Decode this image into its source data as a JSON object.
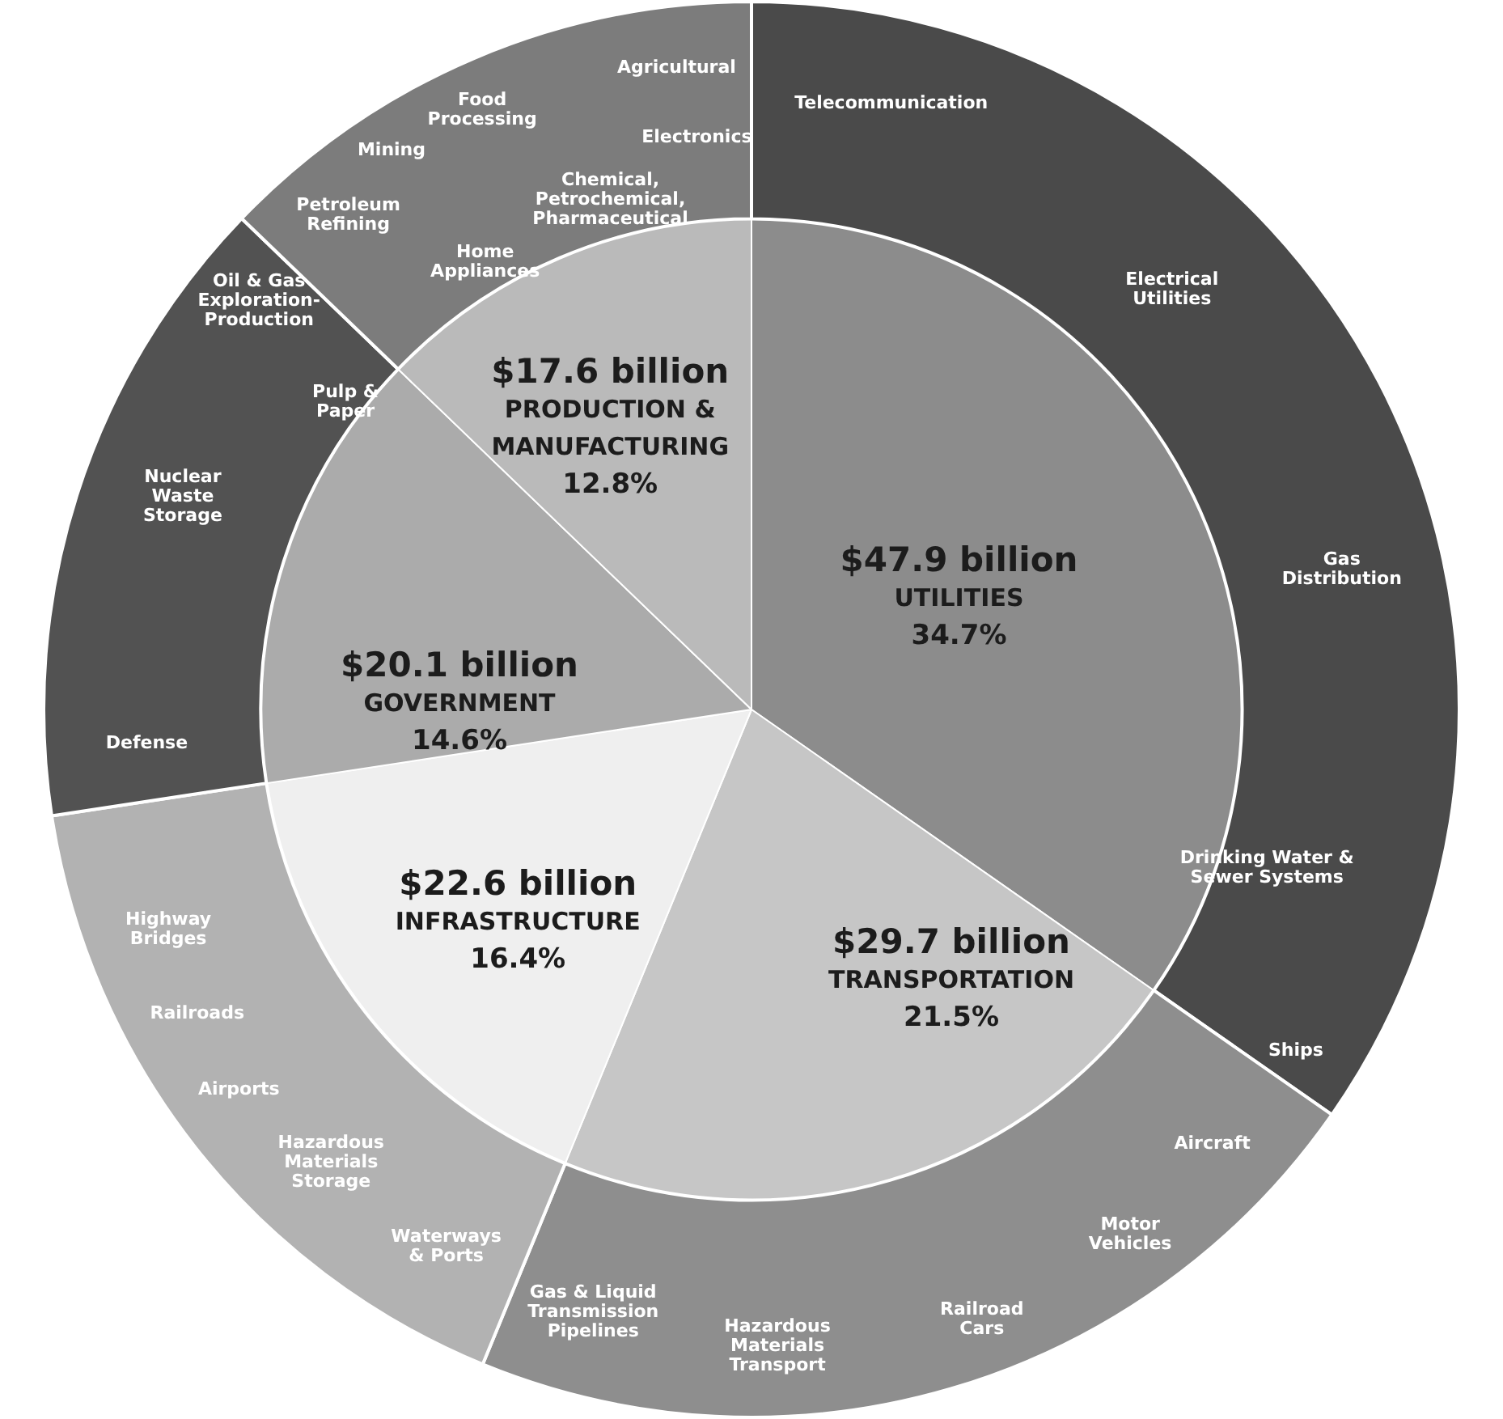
{
  "chart_data": {
    "type": "pie",
    "categories": [
      "UTILITIES",
      "TRANSPORTATION",
      "INFRASTRUCTURE",
      "GOVERNMENT",
      "PRODUCTION &\nMANUFACTURING"
    ],
    "series": [
      {
        "values": [
          34.7,
          21.5,
          16.4,
          14.6,
          12.8
        ],
        "colors": [
          "#4a4a4a",
          "#8e8e8e",
          "#b2b2b2",
          "#525252",
          "#7c7c7c"
        ]
      },
      {
        "values": [
          34.7,
          21.5,
          16.4,
          14.6,
          12.8
        ],
        "colors": [
          "#8c8c8c",
          "#c6c6c6",
          "#efefef",
          "#ababab",
          "#bababa"
        ]
      }
    ],
    "value_labels": [
      "34.7%",
      "21.5%",
      "16.4%",
      "14.6%",
      "12.8%"
    ],
    "legend": false,
    "annotations": [
      "$47.9 billion",
      "$29.7 billion",
      "$22.6 billion",
      "$20.1 billion",
      "$17.6 billion",
      "Telecommunication",
      "Electrical\nUtilities",
      "Gas\nDistribution",
      "Drinking Water &\nSewer Systems",
      "Ships",
      "Aircraft",
      "Motor\nVehicles",
      "Railroad\nCars",
      "Hazardous\nMaterials\nTransport",
      "Gas & Liquid\nTransmission\nPipelines",
      "Waterways\n& Ports",
      "Hazardous\nMaterials\nStorage",
      "Airports",
      "Railroads",
      "Highway\nBridges",
      "Defense",
      "Nuclear\nWaste\nStorage",
      "Oil & Gas\nExploration-\nProduction",
      "Pulp &\nPaper",
      "Home\nAppliances",
      "Petroleum\nRefining",
      "Chemical,\nPetrochemical,\nPharmaceutical",
      "Mining",
      "Food\nProcessing",
      "Electronics",
      "Agricultural"
    ]
  }
}
